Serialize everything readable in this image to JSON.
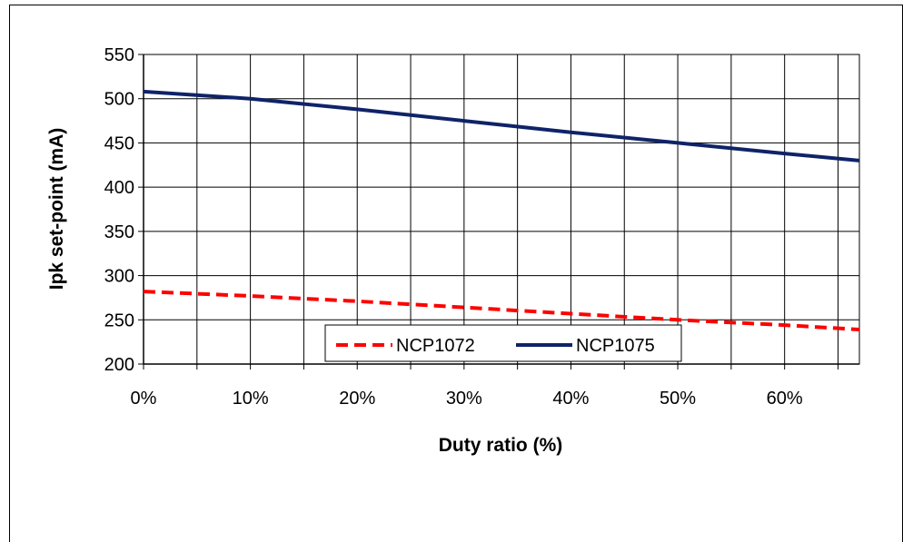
{
  "chart_data": {
    "type": "line",
    "xlabel": "Duty ratio (%)",
    "ylabel": "Ipk set-point (mA)",
    "xlim": [
      0,
      67
    ],
    "ylim": [
      200,
      550
    ],
    "x_ticks": [
      0,
      10,
      20,
      30,
      40,
      50,
      60
    ],
    "x_tick_labels": [
      "0%",
      "10%",
      "20%",
      "30%",
      "40%",
      "50%",
      "60%"
    ],
    "x_gridlines": [
      0,
      5,
      10,
      15,
      20,
      25,
      30,
      35,
      40,
      45,
      50,
      55,
      60,
      65
    ],
    "y_ticks": [
      200,
      250,
      300,
      350,
      400,
      450,
      500,
      550
    ],
    "y_tick_labels": [
      "200",
      "250",
      "300",
      "350",
      "400",
      "450",
      "500",
      "550"
    ],
    "grid": true,
    "legend_position": "bottom",
    "series": [
      {
        "name": "NCP1072",
        "style": "dashed",
        "color": "#ff0000",
        "x": [
          0,
          10,
          20,
          30,
          40,
          50,
          60,
          67
        ],
        "y": [
          282,
          277,
          271,
          264,
          257,
          250,
          244,
          239
        ]
      },
      {
        "name": "NCP1075",
        "style": "solid",
        "color": "#0f2368",
        "x": [
          0,
          10,
          20,
          30,
          40,
          50,
          60,
          67
        ],
        "y": [
          508,
          500,
          488,
          475,
          462,
          450,
          438,
          430
        ]
      }
    ]
  }
}
